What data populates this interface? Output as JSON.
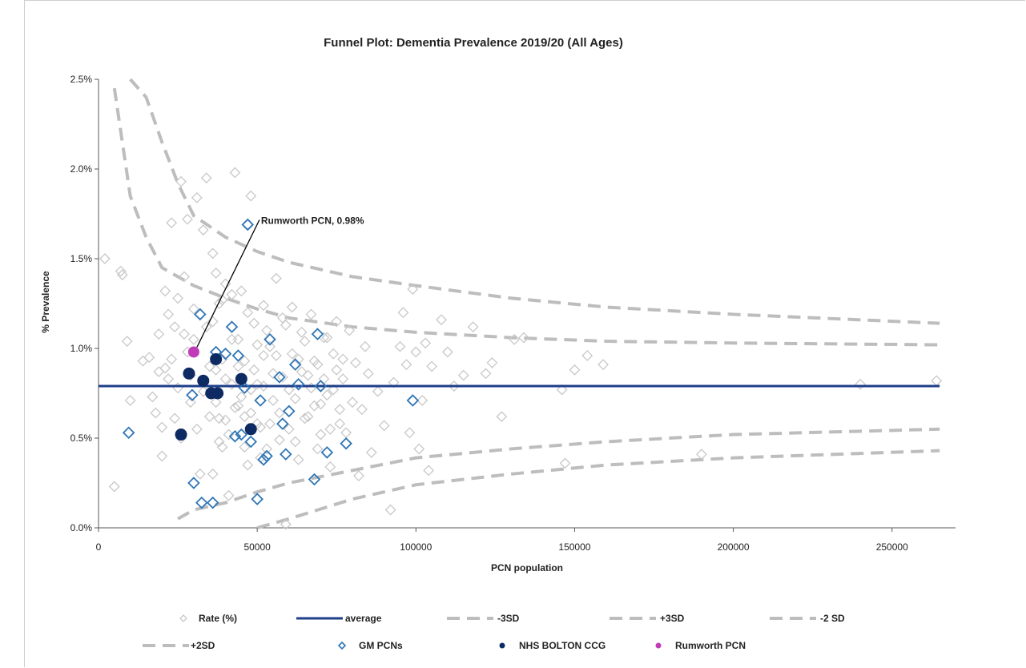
{
  "chart_data": {
    "type": "scatter",
    "title": "Funnel Plot: Dementia Prevalence 2019/20 (All Ages)",
    "xlabel": "PCN population",
    "ylabel": "% Prevalence",
    "xlim": [
      0,
      270000
    ],
    "ylim": [
      0,
      2.5
    ],
    "x_ticks": [
      0,
      50000,
      100000,
      150000,
      200000,
      250000
    ],
    "x_tick_labels": [
      "0",
      "50000",
      "100000",
      "150000",
      "200000",
      "250000"
    ],
    "y_ticks": [
      0,
      0.5,
      1.0,
      1.5,
      2.0,
      2.5
    ],
    "y_tick_labels": [
      "0.0%",
      "0.5%",
      "1.0%",
      "1.5%",
      "2.0%",
      "2.5%"
    ],
    "average": 0.79,
    "limits": {
      "x": [
        5000,
        10000,
        15000,
        20000,
        25000,
        30000,
        40000,
        50000,
        60000,
        80000,
        100000,
        130000,
        160000,
        200000,
        265000
      ],
      "plus3sd": [
        2.45,
        1.85,
        1.62,
        1.45,
        1.4,
        1.35,
        1.28,
        1.22,
        1.17,
        1.12,
        1.09,
        1.06,
        1.04,
        1.03,
        1.02
      ],
      "plus2sd": [
        null,
        2.5,
        2.4,
        2.15,
        1.92,
        1.74,
        1.62,
        1.54,
        1.48,
        1.4,
        1.35,
        1.28,
        1.23,
        1.19,
        1.14
      ],
      "minus2sd": [
        null,
        null,
        null,
        null,
        0.05,
        0.1,
        0.14,
        0.2,
        0.25,
        0.32,
        0.39,
        0.44,
        0.48,
        0.52,
        0.55
      ],
      "minus3sd": [
        null,
        null,
        null,
        null,
        null,
        null,
        null,
        0.0,
        0.05,
        0.16,
        0.24,
        0.3,
        0.35,
        0.39,
        0.43
      ]
    },
    "series": [
      {
        "name": "Rate (%)",
        "points": [
          [
            2000,
            1.5
          ],
          [
            5000,
            0.23
          ],
          [
            7000,
            1.43
          ],
          [
            7500,
            1.41
          ],
          [
            9000,
            1.04
          ],
          [
            10000,
            0.71
          ],
          [
            14000,
            0.93
          ],
          [
            16000,
            0.95
          ],
          [
            17000,
            0.73
          ],
          [
            18000,
            0.64
          ],
          [
            19000,
            1.08
          ],
          [
            20000,
            0.4
          ],
          [
            21000,
            0.89
          ],
          [
            22000,
            1.19
          ],
          [
            23000,
            1.7
          ],
          [
            24000,
            1.12
          ],
          [
            25000,
            0.78
          ],
          [
            26000,
            1.93
          ],
          [
            27000,
            1.4
          ],
          [
            28000,
            1.72
          ],
          [
            29000,
            0.7
          ],
          [
            30000,
            1.22
          ],
          [
            31000,
            1.84
          ],
          [
            32000,
            0.3
          ],
          [
            33000,
            1.66
          ],
          [
            34000,
            1.95
          ],
          [
            35000,
            0.62
          ],
          [
            36000,
            1.53
          ],
          [
            37000,
            0.88
          ],
          [
            38000,
            1.25
          ],
          [
            39000,
            0.45
          ],
          [
            40000,
            1.36
          ],
          [
            41000,
            0.18
          ],
          [
            42000,
            1.05
          ],
          [
            43000,
            1.98
          ],
          [
            44000,
            0.68
          ],
          [
            45000,
            1.32
          ],
          [
            46000,
            0.93
          ],
          [
            47000,
            0.35
          ],
          [
            48000,
            1.85
          ],
          [
            49000,
            1.14
          ],
          [
            50000,
            0.8
          ],
          [
            51000,
            0.56
          ],
          [
            52000,
            1.24
          ],
          [
            53000,
            0.44
          ],
          [
            54000,
            1.01
          ],
          [
            55000,
            0.86
          ],
          [
            56000,
            1.39
          ],
          [
            57000,
            0.64
          ],
          [
            58000,
            1.17
          ],
          [
            59000,
            0.02
          ],
          [
            60000,
            0.77
          ],
          [
            61000,
            1.23
          ],
          [
            62000,
            0.48
          ],
          [
            63000,
            0.94
          ],
          [
            64000,
            1.09
          ],
          [
            65000,
            0.61
          ],
          [
            66000,
            0.85
          ],
          [
            67000,
            1.19
          ],
          [
            68000,
            0.68
          ],
          [
            69000,
            0.91
          ],
          [
            70000,
            0.52
          ],
          [
            71000,
            1.06
          ],
          [
            72000,
            0.74
          ],
          [
            73000,
            0.34
          ],
          [
            74000,
            0.97
          ],
          [
            75000,
            1.15
          ],
          [
            76000,
            0.58
          ],
          [
            77000,
            0.83
          ],
          [
            78000,
            0.47
          ],
          [
            79000,
            1.1
          ],
          [
            80000,
            0.7
          ],
          [
            81000,
            0.92
          ],
          [
            82000,
            0.29
          ],
          [
            83000,
            0.66
          ],
          [
            84000,
            1.01
          ],
          [
            85000,
            0.86
          ],
          [
            86000,
            0.42
          ],
          [
            88000,
            0.76
          ],
          [
            90000,
            0.57
          ],
          [
            92000,
            0.1
          ],
          [
            93000,
            0.81
          ],
          [
            95000,
            1.01
          ],
          [
            96000,
            1.2
          ],
          [
            97000,
            0.91
          ],
          [
            98000,
            0.53
          ],
          [
            99000,
            1.33
          ],
          [
            100000,
            0.98
          ],
          [
            101000,
            0.44
          ],
          [
            102000,
            0.71
          ],
          [
            103000,
            1.03
          ],
          [
            104000,
            0.32
          ],
          [
            105000,
            0.9
          ],
          [
            108000,
            1.16
          ],
          [
            110000,
            0.98
          ],
          [
            112000,
            0.79
          ],
          [
            115000,
            0.85
          ],
          [
            118000,
            1.12
          ],
          [
            122000,
            0.86
          ],
          [
            124000,
            0.92
          ],
          [
            127000,
            0.62
          ],
          [
            131000,
            1.05
          ],
          [
            134000,
            1.06
          ],
          [
            146000,
            0.77
          ],
          [
            147000,
            0.36
          ],
          [
            150000,
            0.88
          ],
          [
            154000,
            0.96
          ],
          [
            159000,
            0.91
          ],
          [
            190000,
            0.41
          ],
          [
            240000,
            0.8
          ],
          [
            264000,
            0.82
          ],
          [
            28000,
            0.98
          ],
          [
            30000,
            1.05
          ],
          [
            31000,
            0.55
          ],
          [
            33000,
            0.76
          ],
          [
            34000,
            1.12
          ],
          [
            36000,
            0.3
          ],
          [
            37000,
            1.42
          ],
          [
            38000,
            0.61
          ],
          [
            39000,
            0.94
          ],
          [
            40000,
            0.83
          ],
          [
            41000,
            0.52
          ],
          [
            42000,
            1.3
          ],
          [
            43000,
            0.67
          ],
          [
            44000,
            1.05
          ],
          [
            45000,
            0.73
          ],
          [
            46000,
            0.45
          ],
          [
            47000,
            1.2
          ],
          [
            48000,
            0.64
          ],
          [
            49000,
            0.88
          ],
          [
            50000,
            1.02
          ],
          [
            51000,
            0.39
          ],
          [
            52000,
            0.79
          ],
          [
            53000,
            1.1
          ],
          [
            54000,
            0.58
          ],
          [
            55000,
            0.71
          ],
          [
            56000,
            0.96
          ],
          [
            57000,
            0.49
          ],
          [
            58000,
            0.84
          ],
          [
            59000,
            1.13
          ],
          [
            60000,
            0.55
          ],
          [
            61000,
            0.97
          ],
          [
            62000,
            0.72
          ],
          [
            63000,
            0.38
          ],
          [
            64000,
            0.87
          ],
          [
            65000,
            1.04
          ],
          [
            66000,
            0.62
          ],
          [
            67000,
            0.78
          ],
          [
            68000,
            0.93
          ],
          [
            69000,
            0.44
          ],
          [
            70000,
            0.69
          ],
          [
            71000,
            0.83
          ],
          [
            72000,
            1.06
          ],
          [
            73000,
            0.55
          ],
          [
            74000,
            0.77
          ],
          [
            75000,
            0.88
          ],
          [
            76000,
            0.66
          ],
          [
            77000,
            0.94
          ],
          [
            78000,
            0.53
          ],
          [
            35000,
            0.9
          ],
          [
            36000,
            1.15
          ],
          [
            37000,
            0.7
          ],
          [
            38000,
            0.48
          ],
          [
            39000,
            1.27
          ],
          [
            40000,
            0.6
          ],
          [
            42000,
            0.8
          ],
          [
            44000,
            0.9
          ],
          [
            46000,
            0.62
          ],
          [
            48000,
            0.77
          ],
          [
            50000,
            0.58
          ],
          [
            52000,
            0.96
          ],
          [
            29000,
            0.85
          ],
          [
            27000,
            1.08
          ],
          [
            26000,
            0.5
          ],
          [
            25000,
            1.28
          ],
          [
            24000,
            0.61
          ],
          [
            23000,
            0.94
          ],
          [
            22000,
            0.83
          ],
          [
            21000,
            1.32
          ],
          [
            20000,
            0.56
          ],
          [
            19000,
            0.87
          ]
        ]
      },
      {
        "name": "GM PCNs",
        "points": [
          [
            9500,
            0.53
          ],
          [
            29500,
            0.74
          ],
          [
            30000,
            0.25
          ],
          [
            32000,
            1.19
          ],
          [
            32500,
            0.14
          ],
          [
            36000,
            0.14
          ],
          [
            37000,
            0.98
          ],
          [
            40000,
            0.97
          ],
          [
            42000,
            1.12
          ],
          [
            43000,
            0.51
          ],
          [
            44000,
            0.96
          ],
          [
            45000,
            0.52
          ],
          [
            46000,
            0.78
          ],
          [
            47000,
            1.69
          ],
          [
            48000,
            0.48
          ],
          [
            50000,
            0.16
          ],
          [
            51000,
            0.71
          ],
          [
            52000,
            0.38
          ],
          [
            53000,
            0.4
          ],
          [
            54000,
            1.05
          ],
          [
            57000,
            0.84
          ],
          [
            58000,
            0.58
          ],
          [
            59000,
            0.41
          ],
          [
            60000,
            0.65
          ],
          [
            62000,
            0.91
          ],
          [
            63000,
            0.8
          ],
          [
            68000,
            0.27
          ],
          [
            69000,
            1.08
          ],
          [
            70000,
            0.79
          ],
          [
            72000,
            0.42
          ],
          [
            78000,
            0.47
          ],
          [
            99000,
            0.71
          ]
        ]
      },
      {
        "name": "NHS BOLTON CCG",
        "points": [
          [
            26000,
            0.52
          ],
          [
            28500,
            0.86
          ],
          [
            33000,
            0.82
          ],
          [
            35500,
            0.75
          ],
          [
            37000,
            0.94
          ],
          [
            37500,
            0.75
          ],
          [
            45000,
            0.83
          ],
          [
            48000,
            0.55
          ]
        ]
      },
      {
        "name": "Rumworth PCN",
        "points": [
          [
            30000,
            0.98
          ]
        ]
      }
    ],
    "legend": [
      {
        "label": "Rate (%)",
        "key": "rate"
      },
      {
        "label": "average",
        "key": "average"
      },
      {
        "label": "-3SD",
        "key": "minus3sd"
      },
      {
        "label": "+3SD",
        "key": "plus3sd"
      },
      {
        "label": "-2 SD",
        "key": "minus2sd"
      },
      {
        "label": "+2SD",
        "key": "plus2sd"
      },
      {
        "label": "GM PCNs",
        "key": "gm"
      },
      {
        "label": "NHS BOLTON CCG",
        "key": "bolton"
      },
      {
        "label": "Rumworth PCN",
        "key": "rumworth"
      }
    ],
    "legend_position": "bottom",
    "annotation": {
      "text": "Rumworth PCN, 0.98%",
      "x": 30000,
      "y": 0.98
    },
    "colors": {
      "rate": "#c8c8c8",
      "gm": "#2e75b6",
      "bolton": "#0d2a63",
      "rumworth": "#c03bb8",
      "average": "#1f3f8a",
      "limits": "#bdbdbd",
      "axis": "#595959"
    }
  }
}
